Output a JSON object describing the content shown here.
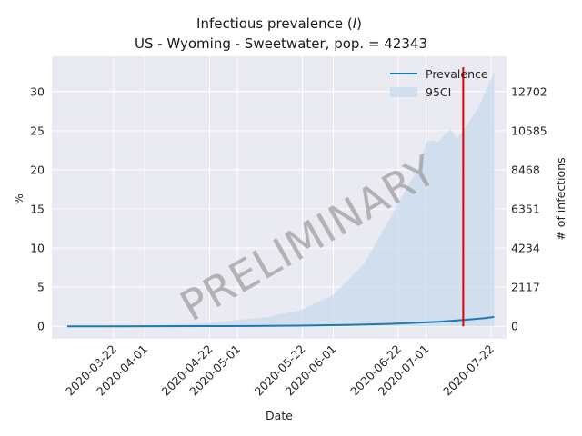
{
  "chart_data": {
    "type": "line",
    "title_line1": "Infectious prevalence (",
    "title_symbol": "I",
    "title_line1_end": ")",
    "title_line2": "US - Wyoming - Sweetwater, pop. = 42343",
    "xlabel": "Date",
    "ylabel_left": "%",
    "ylabel_right": "# of infections",
    "watermark": "PRELIMINARY",
    "x_start": "2020-03-07",
    "x_end": "2020-07-23",
    "xlim": [
      "2020-03-02",
      "2020-07-27"
    ],
    "ylim": [
      -1.6,
      34.5
    ],
    "y_ticks": [
      0,
      5,
      10,
      15,
      20,
      25,
      30
    ],
    "y_right_ticks": [
      0,
      2117,
      4234,
      6351,
      8468,
      10585,
      12702
    ],
    "x_tick_labels": [
      "2020-03-22",
      "2020-04-01",
      "2020-04-22",
      "2020-05-01",
      "2020-05-22",
      "2020-06-01",
      "2020-06-22",
      "2020-07-01",
      "2020-07-22"
    ],
    "vline_date": "2020-07-13",
    "colors": {
      "line": "#1f77b4",
      "band": "#c6d9ec",
      "vline": "#e00000",
      "bg": "#eaeaf2",
      "grid": "#ffffff"
    },
    "legend": {
      "placement": "top-right",
      "entries": [
        "Prevalence",
        "95CI"
      ]
    },
    "series": [
      {
        "name": "Prevalence",
        "x": [
          "2020-03-07",
          "2020-03-22",
          "2020-04-06",
          "2020-04-21",
          "2020-05-06",
          "2020-05-21",
          "2020-06-05",
          "2020-06-20",
          "2020-07-05",
          "2020-07-13",
          "2020-07-20",
          "2020-07-23"
        ],
        "values": [
          0.0,
          0.0,
          0.01,
          0.02,
          0.04,
          0.08,
          0.16,
          0.32,
          0.58,
          0.82,
          1.05,
          1.2
        ]
      },
      {
        "name": "95CI",
        "x": [
          "2020-03-07",
          "2020-03-22",
          "2020-04-06",
          "2020-04-21",
          "2020-05-01",
          "2020-05-11",
          "2020-05-21",
          "2020-06-01",
          "2020-06-11",
          "2020-06-21",
          "2020-06-26",
          "2020-06-29",
          "2020-07-01",
          "2020-07-03",
          "2020-07-05",
          "2020-07-07",
          "2020-07-09",
          "2020-07-11",
          "2020-07-13",
          "2020-07-18",
          "2020-07-23"
        ],
        "upper": [
          0.0,
          0.05,
          0.2,
          0.4,
          0.8,
          1.2,
          2.0,
          4.0,
          8.0,
          15.0,
          18.5,
          20.5,
          23.5,
          23.8,
          23.5,
          24.5,
          25.2,
          24.0,
          25.0,
          28.0,
          32.5
        ],
        "lower": [
          0.0,
          0.0,
          0.0,
          0.0,
          0.0,
          0.0,
          0.0,
          0.0,
          0.0,
          0.0,
          0.0,
          0.0,
          0.0,
          0.0,
          0.0,
          0.0,
          0.0,
          0.0,
          0.0,
          0.0,
          0.0
        ]
      }
    ]
  }
}
